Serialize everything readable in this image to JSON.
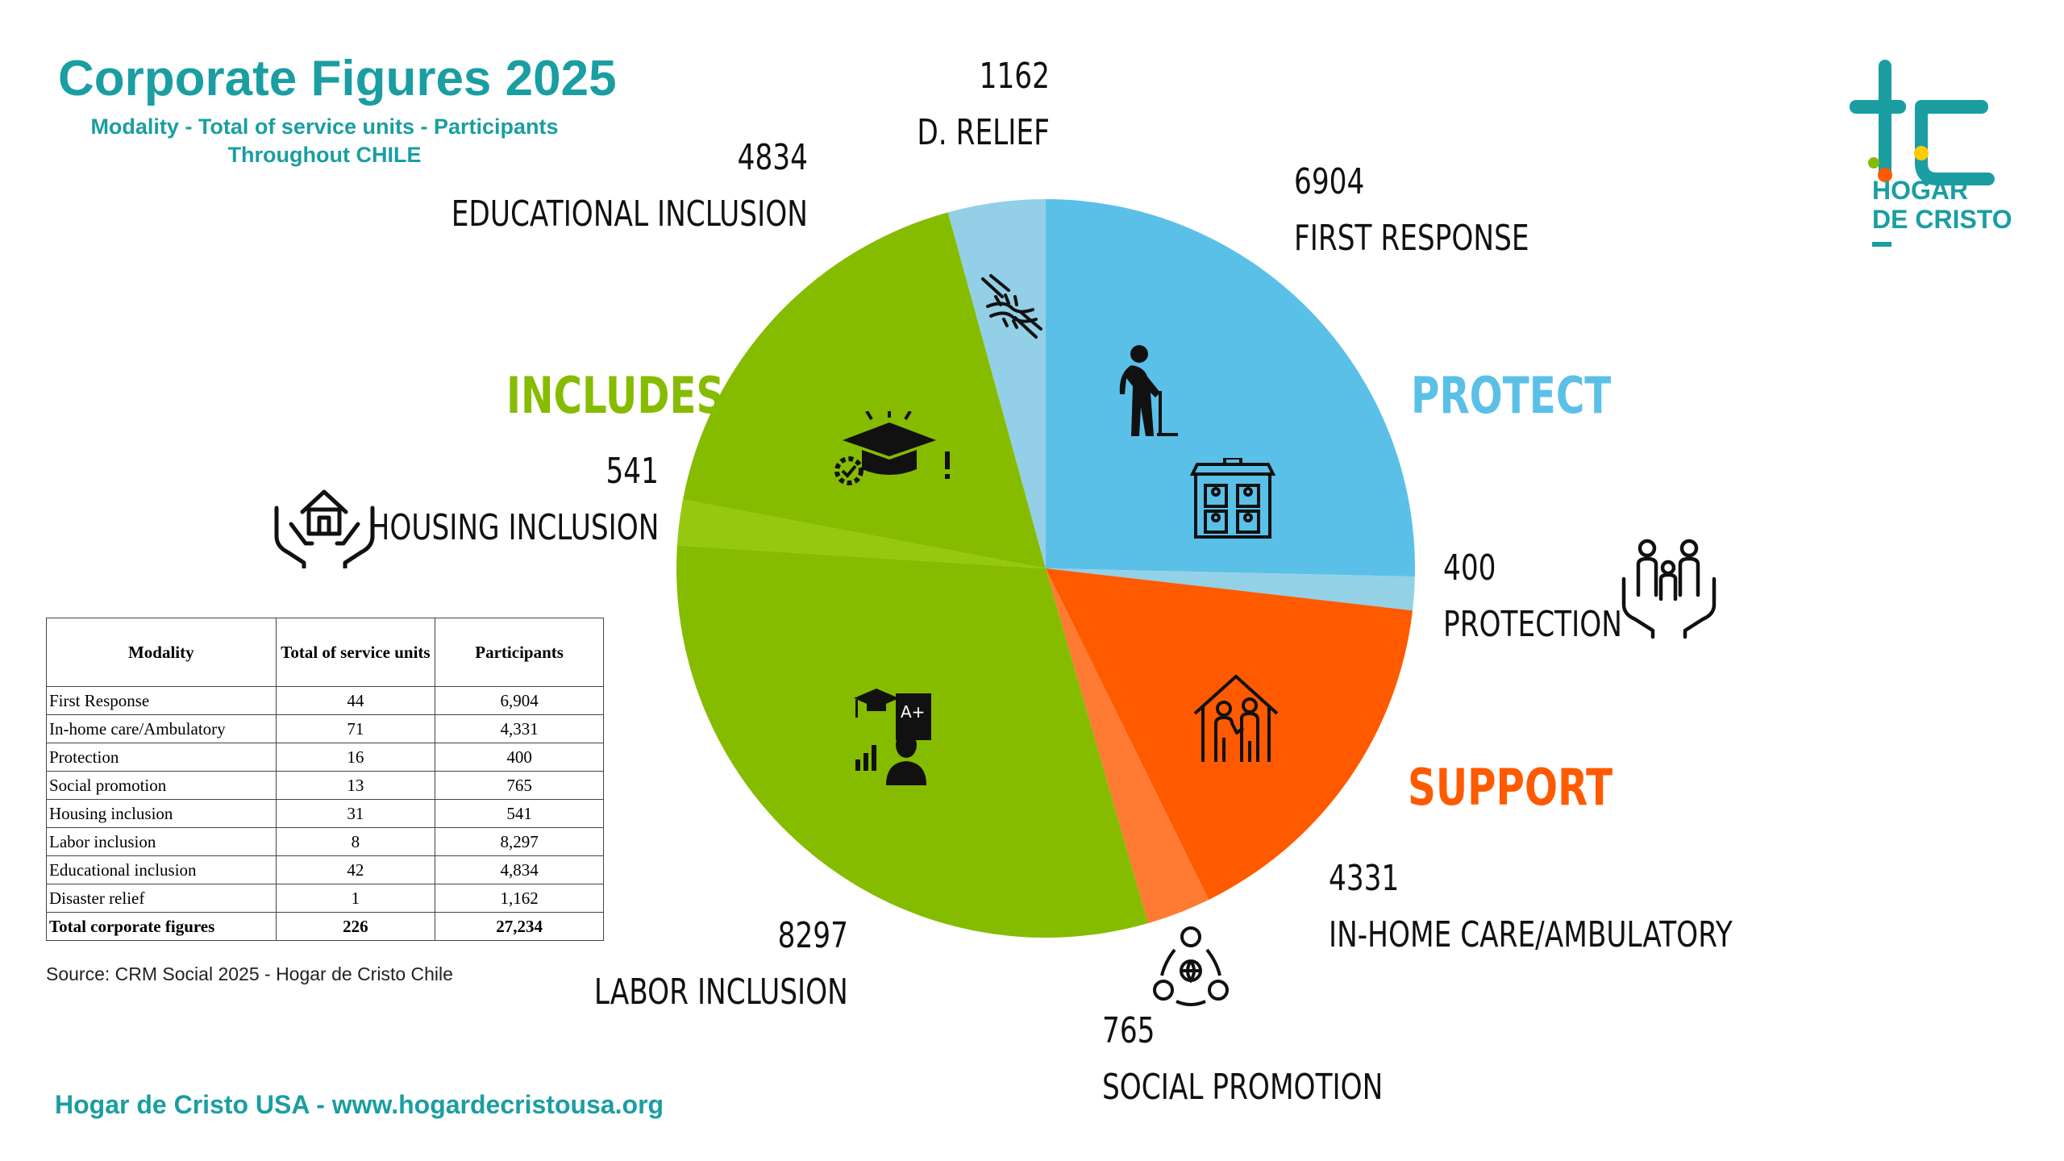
{
  "header": {
    "title": "Corporate Figures 2025",
    "subtitle_line1": "Modality - Total of service units - Participants",
    "subtitle_line2": "Throughout CHILE"
  },
  "logo": {
    "line1": "HOGAR",
    "line2": "DE CRISTO"
  },
  "categories": {
    "protect": "PROTECT",
    "support": "SUPPORT",
    "includes": "INCLUDES"
  },
  "colors": {
    "teal": "#1a9ea2",
    "protect": "#5bc0e8",
    "protect_light": "#93d1e6",
    "support": "#ff5a00",
    "support_light": "#ff7a33",
    "includes": "#86bc00",
    "includes_light": "#95c80e",
    "relief": "#93cfe6"
  },
  "chart_data": {
    "type": "pie",
    "title": "Corporate Figures 2025",
    "start": "12 o'clock",
    "direction": "clockwise",
    "slices": [
      {
        "label": "FIRST RESPONSE",
        "value": 6904,
        "value_label": "6904",
        "color": "#5bc0e8",
        "group": "PROTECT"
      },
      {
        "label": "PROTECTION",
        "value": 400,
        "value_label": "400",
        "color": "#93d1e6",
        "group": "PROTECT"
      },
      {
        "label": "IN-HOME CARE/AMBULATORY",
        "value": 4331,
        "value_label": "4331",
        "color": "#ff5a00",
        "group": "SUPPORT"
      },
      {
        "label": "SOCIAL  PROMOTION",
        "value": 765,
        "value_label": "765",
        "color": "#ff7a33",
        "group": "SUPPORT"
      },
      {
        "label": "LABOR INCLUSION",
        "value": 8297,
        "value_label": "8297",
        "color": "#86bc00",
        "group": "INCLUDES"
      },
      {
        "label": "HOUSING INCLUSION",
        "value": 541,
        "value_label": "541",
        "color": "#95c80e",
        "group": "INCLUDES"
      },
      {
        "label": "EDUCATIONAL INCLUSION",
        "value": 4834,
        "value_label": "4834",
        "color": "#86bc00",
        "group": "INCLUDES"
      },
      {
        "label": "D. RELIEF",
        "value": 1162,
        "value_label": "1162",
        "color": "#93cfe6",
        "group": "RELIEF"
      }
    ]
  },
  "table": {
    "headers": [
      "Modality",
      "Total of service units",
      "Participants"
    ],
    "rows": [
      [
        "First Response",
        "44",
        "6,904"
      ],
      [
        "In-home care/Ambulatory",
        "71",
        "4,331"
      ],
      [
        "Protection",
        "16",
        "400"
      ],
      [
        "Social promotion",
        "13",
        "765"
      ],
      [
        "Housing inclusion",
        "31",
        "541"
      ],
      [
        "Labor inclusion",
        "8",
        "8,297"
      ],
      [
        "Educational inclusion",
        "42",
        "4,834"
      ],
      [
        "Disaster relief",
        "1",
        "1,162"
      ]
    ],
    "total": [
      "Total corporate figures",
      "226",
      "27,234"
    ]
  },
  "source": "Source: CRM Social 2025 - Hogar de Cristo Chile",
  "footer": "Hogar de Cristo USA - www.hogardecristousa.org"
}
